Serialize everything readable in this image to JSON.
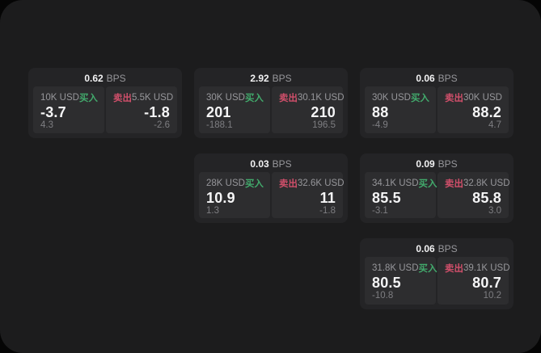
{
  "colors": {
    "background": "#050505",
    "panel_bg": "#1c1c1d",
    "card_bg": "#242426",
    "tile_bg": "#2d2d2f",
    "text_primary": "#f5f5f6",
    "text_muted": "#97979b",
    "text_dim": "#7e7e82",
    "buy_green": "#42aa6c",
    "sell_red": "#d04f6a"
  },
  "cards": [
    {
      "row": 1,
      "col": 1,
      "bps_value": "0.62",
      "bps_unit": "BPS",
      "buy": {
        "notional": "10K USD",
        "side_label": "买入",
        "price": "-3.7",
        "delta": "4.3"
      },
      "sell": {
        "side_label": "卖出",
        "notional": "5.5K USD",
        "price": "-1.8",
        "delta": "-2.6"
      }
    },
    {
      "row": 1,
      "col": 2,
      "bps_value": "2.92",
      "bps_unit": "BPS",
      "buy": {
        "notional": "30K USD",
        "side_label": "买入",
        "price": "201",
        "delta": "-188.1"
      },
      "sell": {
        "side_label": "卖出",
        "notional": "30.1K USD",
        "price": "210",
        "delta": "196.5"
      }
    },
    {
      "row": 1,
      "col": 3,
      "bps_value": "0.06",
      "bps_unit": "BPS",
      "buy": {
        "notional": "30K USD",
        "side_label": "买入",
        "price": "88",
        "delta": "-4.9"
      },
      "sell": {
        "side_label": "卖出",
        "notional": "30K USD",
        "price": "88.2",
        "delta": "4.7"
      }
    },
    {
      "row": 2,
      "col": 2,
      "bps_value": "0.03",
      "bps_unit": "BPS",
      "buy": {
        "notional": "28K USD",
        "side_label": "买入",
        "price": "10.9",
        "delta": "1.3"
      },
      "sell": {
        "side_label": "卖出",
        "notional": "32.6K USD",
        "price": "11",
        "delta": "-1.8"
      }
    },
    {
      "row": 2,
      "col": 3,
      "bps_value": "0.09",
      "bps_unit": "BPS",
      "buy": {
        "notional": "34.1K USD",
        "side_label": "买入",
        "price": "85.5",
        "delta": "-3.1"
      },
      "sell": {
        "side_label": "卖出",
        "notional": "32.8K USD",
        "price": "85.8",
        "delta": "3.0"
      }
    },
    {
      "row": 3,
      "col": 3,
      "bps_value": "0.06",
      "bps_unit": "BPS",
      "buy": {
        "notional": "31.8K USD",
        "side_label": "买入",
        "price": "80.5",
        "delta": "-10.8"
      },
      "sell": {
        "side_label": "卖出",
        "notional": "39.1K USD",
        "price": "80.7",
        "delta": "10.2"
      }
    }
  ]
}
